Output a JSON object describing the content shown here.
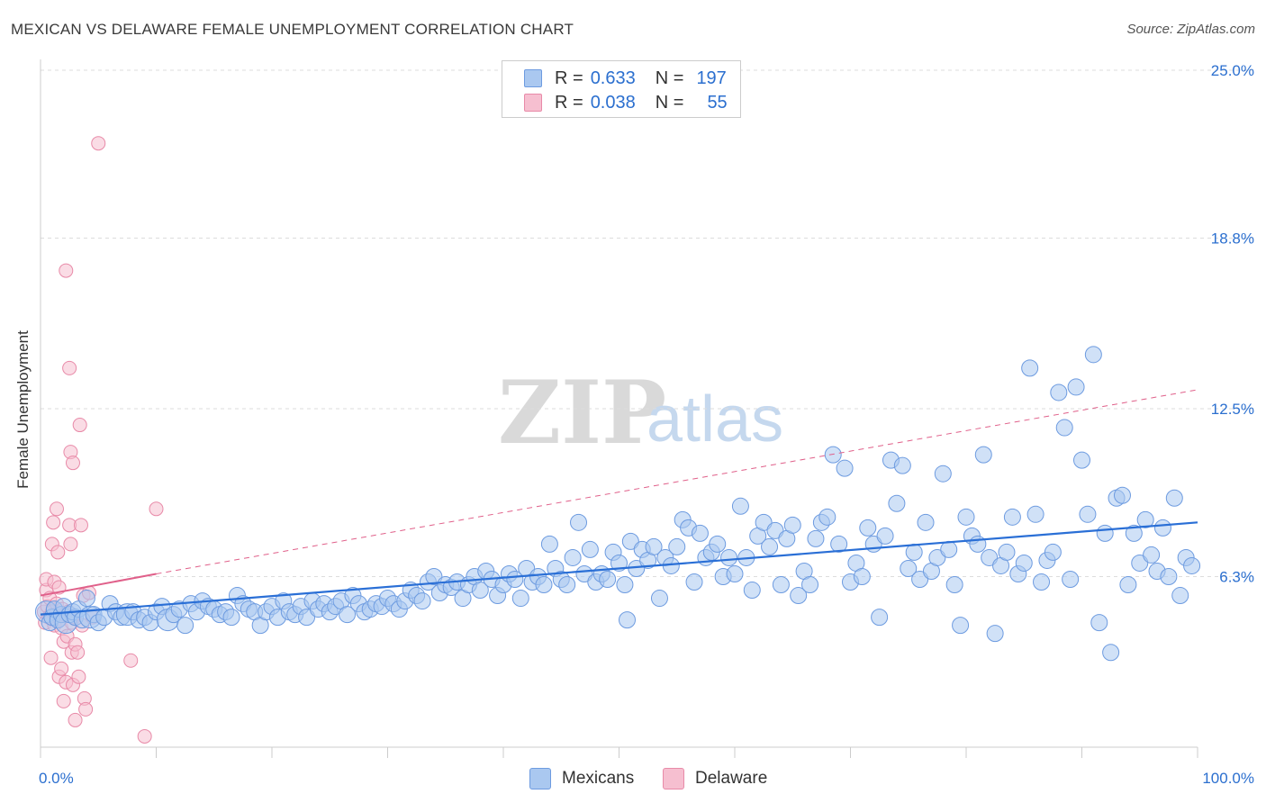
{
  "header": {
    "title": "MEXICAN VS DELAWARE FEMALE UNEMPLOYMENT CORRELATION CHART",
    "source": "Source: ZipAtlas.com"
  },
  "legend": {
    "rows": [
      {
        "r_label": "R =",
        "r_value": "0.633",
        "n_label": "N =",
        "n_value": "197",
        "color": "#aac8f0",
        "border": "#6d9be0"
      },
      {
        "r_label": "R =",
        "r_value": "0.038",
        "n_label": "N =",
        "n_value": "55",
        "color": "#f6bfd0",
        "border": "#e88aa8"
      }
    ]
  },
  "watermark": {
    "zip": "ZIP",
    "atlas": "atlas"
  },
  "colors": {
    "mexicans_fill": "#aac8f0",
    "mexicans_stroke": "#6d9be0",
    "mexicans_line": "#2a6fd6",
    "delaware_fill": "#f6bfd0",
    "delaware_stroke": "#e88aa8",
    "delaware_line": "#e0608a",
    "axis_text": "#2b6fcf",
    "grid": "#dddddd"
  },
  "chart_data": {
    "type": "scatter",
    "title": "MEXICAN VS DELAWARE FEMALE UNEMPLOYMENT CORRELATION CHART",
    "xlabel": "",
    "ylabel": "Female Unemployment",
    "xlim": [
      0,
      100
    ],
    "ylim": [
      0,
      25.0
    ],
    "x_tick_labels": [
      "0.0%",
      "100.0%"
    ],
    "y_ticks": [
      6.3,
      12.5,
      18.8,
      25.0
    ],
    "y_tick_labels": [
      "6.3%",
      "12.5%",
      "18.8%",
      "25.0%"
    ],
    "grid": true,
    "legend_position": "top-center",
    "series": [
      {
        "name": "Mexicans",
        "r": 0.633,
        "n": 197,
        "trend": {
          "x": [
            0,
            100
          ],
          "y": [
            4.9,
            8.3
          ],
          "style": "solid"
        },
        "points": [
          [
            0.5,
            5.0
          ],
          [
            0.8,
            4.6
          ],
          [
            1.0,
            4.8
          ],
          [
            1.2,
            5.1
          ],
          [
            1.5,
            4.7
          ],
          [
            1.8,
            4.9
          ],
          [
            2.0,
            5.2
          ],
          [
            2.2,
            4.6
          ],
          [
            2.5,
            4.9
          ],
          [
            2.8,
            5.0
          ],
          [
            3.0,
            4.8
          ],
          [
            3.3,
            5.1
          ],
          [
            3.6,
            4.7
          ],
          [
            4.0,
            5.5
          ],
          [
            4.3,
            4.8
          ],
          [
            4.6,
            4.9
          ],
          [
            5.0,
            4.6
          ],
          [
            5.5,
            4.8
          ],
          [
            6.0,
            5.3
          ],
          [
            6.5,
            5.0
          ],
          [
            7.0,
            4.8
          ],
          [
            7.5,
            4.9
          ],
          [
            8.0,
            5.0
          ],
          [
            8.5,
            4.7
          ],
          [
            9.0,
            4.8
          ],
          [
            9.5,
            4.6
          ],
          [
            10.0,
            5.0
          ],
          [
            10.5,
            5.2
          ],
          [
            11.0,
            4.7
          ],
          [
            11.5,
            4.9
          ],
          [
            12.0,
            5.1
          ],
          [
            12.5,
            4.5
          ],
          [
            13.0,
            5.3
          ],
          [
            13.5,
            5.0
          ],
          [
            14.0,
            5.4
          ],
          [
            14.5,
            5.2
          ],
          [
            15.0,
            5.1
          ],
          [
            15.5,
            4.9
          ],
          [
            16.0,
            5.0
          ],
          [
            16.5,
            4.8
          ],
          [
            17.0,
            5.6
          ],
          [
            17.5,
            5.3
          ],
          [
            18.0,
            5.1
          ],
          [
            18.5,
            5.0
          ],
          [
            19.0,
            4.5
          ],
          [
            19.5,
            5.0
          ],
          [
            20.0,
            5.2
          ],
          [
            20.5,
            4.8
          ],
          [
            21.0,
            5.4
          ],
          [
            21.5,
            5.0
          ],
          [
            22.0,
            4.9
          ],
          [
            22.5,
            5.2
          ],
          [
            23.0,
            4.8
          ],
          [
            23.5,
            5.4
          ],
          [
            24.0,
            5.1
          ],
          [
            24.5,
            5.3
          ],
          [
            25.0,
            5.0
          ],
          [
            25.5,
            5.2
          ],
          [
            26.0,
            5.4
          ],
          [
            26.5,
            4.9
          ],
          [
            27.0,
            5.6
          ],
          [
            27.5,
            5.3
          ],
          [
            28.0,
            5.0
          ],
          [
            28.5,
            5.1
          ],
          [
            29.0,
            5.3
          ],
          [
            29.5,
            5.2
          ],
          [
            30.0,
            5.5
          ],
          [
            30.5,
            5.3
          ],
          [
            31.0,
            5.1
          ],
          [
            31.5,
            5.4
          ],
          [
            32.0,
            5.8
          ],
          [
            32.5,
            5.6
          ],
          [
            33.0,
            5.4
          ],
          [
            33.5,
            6.1
          ],
          [
            34.0,
            6.3
          ],
          [
            34.5,
            5.7
          ],
          [
            35.0,
            6.0
          ],
          [
            35.5,
            5.9
          ],
          [
            36.0,
            6.1
          ],
          [
            36.5,
            5.5
          ],
          [
            37.0,
            6.0
          ],
          [
            37.5,
            6.3
          ],
          [
            38.0,
            5.8
          ],
          [
            38.5,
            6.5
          ],
          [
            39.0,
            6.2
          ],
          [
            39.5,
            5.6
          ],
          [
            40.0,
            6.0
          ],
          [
            40.5,
            6.4
          ],
          [
            41.0,
            6.2
          ],
          [
            41.5,
            5.5
          ],
          [
            42.0,
            6.6
          ],
          [
            42.5,
            6.1
          ],
          [
            43.0,
            6.3
          ],
          [
            43.5,
            6.0
          ],
          [
            44.0,
            7.5
          ],
          [
            44.5,
            6.6
          ],
          [
            45.0,
            6.2
          ],
          [
            45.5,
            6.0
          ],
          [
            46.0,
            7.0
          ],
          [
            46.5,
            8.3
          ],
          [
            47.0,
            6.4
          ],
          [
            47.5,
            7.3
          ],
          [
            48.0,
            6.1
          ],
          [
            48.5,
            6.4
          ],
          [
            49.0,
            6.2
          ],
          [
            49.5,
            7.2
          ],
          [
            50.0,
            6.8
          ],
          [
            50.5,
            6.0
          ],
          [
            51.0,
            7.6
          ],
          [
            51.5,
            6.6
          ],
          [
            52.0,
            7.3
          ],
          [
            52.5,
            6.9
          ],
          [
            53.0,
            7.4
          ],
          [
            53.5,
            5.5
          ],
          [
            54.0,
            7.0
          ],
          [
            54.5,
            6.7
          ],
          [
            55.0,
            7.4
          ],
          [
            55.5,
            8.4
          ],
          [
            56.0,
            8.1
          ],
          [
            56.5,
            6.1
          ],
          [
            57.0,
            7.9
          ],
          [
            57.5,
            7.0
          ],
          [
            58.0,
            7.2
          ],
          [
            58.5,
            7.5
          ],
          [
            59.0,
            6.3
          ],
          [
            59.5,
            7.0
          ],
          [
            60.0,
            6.4
          ],
          [
            60.5,
            8.9
          ],
          [
            61.0,
            7.0
          ],
          [
            61.5,
            5.8
          ],
          [
            62.0,
            7.8
          ],
          [
            62.5,
            8.3
          ],
          [
            63.0,
            7.4
          ],
          [
            63.5,
            8.0
          ],
          [
            64.0,
            6.0
          ],
          [
            64.5,
            7.7
          ],
          [
            65.0,
            8.2
          ],
          [
            65.5,
            5.6
          ],
          [
            66.0,
            6.5
          ],
          [
            66.5,
            6.0
          ],
          [
            67.0,
            7.7
          ],
          [
            67.5,
            8.3
          ],
          [
            68.0,
            8.5
          ],
          [
            68.5,
            10.8
          ],
          [
            69.0,
            7.5
          ],
          [
            69.5,
            10.3
          ],
          [
            70.0,
            6.1
          ],
          [
            70.5,
            6.8
          ],
          [
            71.0,
            6.3
          ],
          [
            71.5,
            8.1
          ],
          [
            72.0,
            7.5
          ],
          [
            72.5,
            4.8
          ],
          [
            73.0,
            7.8
          ],
          [
            73.5,
            10.6
          ],
          [
            74.0,
            9.0
          ],
          [
            74.5,
            10.4
          ],
          [
            75.0,
            6.6
          ],
          [
            75.5,
            7.2
          ],
          [
            76.0,
            6.2
          ],
          [
            76.5,
            8.3
          ],
          [
            77.0,
            6.5
          ],
          [
            77.5,
            7.0
          ],
          [
            78.0,
            10.1
          ],
          [
            78.5,
            7.3
          ],
          [
            79.0,
            6.0
          ],
          [
            79.5,
            4.5
          ],
          [
            80.0,
            8.5
          ],
          [
            80.5,
            7.8
          ],
          [
            81.0,
            7.5
          ],
          [
            81.5,
            10.8
          ],
          [
            82.0,
            7.0
          ],
          [
            82.5,
            4.2
          ],
          [
            83.0,
            6.7
          ],
          [
            83.5,
            7.2
          ],
          [
            84.0,
            8.5
          ],
          [
            84.5,
            6.4
          ],
          [
            85.0,
            6.8
          ],
          [
            85.5,
            14.0
          ],
          [
            86.0,
            8.6
          ],
          [
            86.5,
            6.1
          ],
          [
            87.0,
            6.9
          ],
          [
            87.5,
            7.2
          ],
          [
            88.0,
            13.1
          ],
          [
            88.5,
            11.8
          ],
          [
            89.0,
            6.2
          ],
          [
            89.5,
            13.3
          ],
          [
            90.0,
            10.6
          ],
          [
            90.5,
            8.6
          ],
          [
            91.0,
            14.5
          ],
          [
            91.5,
            4.6
          ],
          [
            92.0,
            7.9
          ],
          [
            92.5,
            3.5
          ],
          [
            93.0,
            9.2
          ],
          [
            93.5,
            9.3
          ],
          [
            94.0,
            6.0
          ],
          [
            94.5,
            7.9
          ],
          [
            95.0,
            6.8
          ],
          [
            95.5,
            8.4
          ],
          [
            96.0,
            7.1
          ],
          [
            96.5,
            6.5
          ],
          [
            97.0,
            8.1
          ],
          [
            97.5,
            6.3
          ],
          [
            98.0,
            9.2
          ],
          [
            98.5,
            5.6
          ],
          [
            99.0,
            7.0
          ],
          [
            99.5,
            6.7
          ],
          [
            50.7,
            4.7
          ]
        ]
      },
      {
        "name": "Delaware",
        "r": 0.038,
        "n": 55,
        "trend": {
          "x": [
            0,
            10
          ],
          "y": [
            5.6,
            6.4
          ],
          "style": "solid",
          "extension": {
            "x": [
              10,
              100
            ],
            "y": [
              6.4,
              13.2
            ],
            "style": "dashed"
          }
        },
        "points": [
          [
            0.3,
            5.0
          ],
          [
            0.4,
            4.6
          ],
          [
            0.5,
            5.8
          ],
          [
            0.5,
            6.2
          ],
          [
            0.6,
            5.2
          ],
          [
            0.7,
            4.8
          ],
          [
            0.8,
            5.5
          ],
          [
            0.9,
            3.3
          ],
          [
            1.0,
            7.5
          ],
          [
            1.0,
            5.0
          ],
          [
            1.1,
            8.3
          ],
          [
            1.2,
            4.5
          ],
          [
            1.2,
            6.1
          ],
          [
            1.3,
            4.9
          ],
          [
            1.4,
            5.3
          ],
          [
            1.4,
            8.8
          ],
          [
            1.5,
            7.2
          ],
          [
            1.6,
            2.6
          ],
          [
            1.6,
            5.9
          ],
          [
            1.7,
            4.7
          ],
          [
            1.8,
            2.9
          ],
          [
            1.8,
            4.4
          ],
          [
            1.9,
            5.1
          ],
          [
            2.0,
            1.7
          ],
          [
            2.0,
            3.9
          ],
          [
            2.1,
            4.9
          ],
          [
            2.2,
            17.6
          ],
          [
            2.2,
            2.4
          ],
          [
            2.3,
            4.1
          ],
          [
            2.4,
            5.0
          ],
          [
            2.5,
            14.0
          ],
          [
            2.5,
            8.2
          ],
          [
            2.6,
            7.5
          ],
          [
            2.6,
            10.9
          ],
          [
            2.7,
            3.5
          ],
          [
            2.7,
            4.6
          ],
          [
            2.8,
            10.5
          ],
          [
            2.8,
            2.3
          ],
          [
            2.9,
            4.8
          ],
          [
            3.0,
            3.8
          ],
          [
            3.0,
            1.0
          ],
          [
            3.2,
            3.5
          ],
          [
            3.3,
            2.6
          ],
          [
            3.4,
            11.9
          ],
          [
            3.5,
            8.2
          ],
          [
            3.6,
            4.5
          ],
          [
            3.7,
            5.6
          ],
          [
            3.8,
            1.8
          ],
          [
            3.9,
            1.4
          ],
          [
            4.2,
            5.7
          ],
          [
            4.5,
            4.8
          ],
          [
            5.0,
            22.3
          ],
          [
            7.8,
            3.2
          ],
          [
            9.0,
            0.4
          ],
          [
            10.0,
            8.8
          ]
        ]
      }
    ]
  }
}
